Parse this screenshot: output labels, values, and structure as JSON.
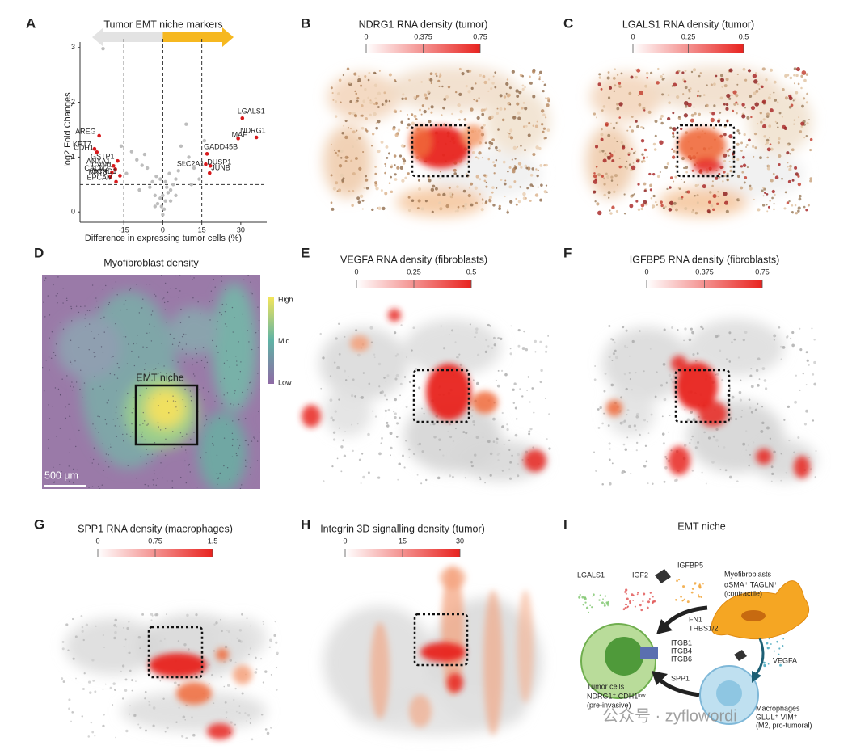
{
  "chart_data": {
    "type": "scatter",
    "title": "Tumor EMT niche markers",
    "xlabel": "Difference in expressing tumor cells (%)",
    "ylabel": "log2 Fold Changes",
    "xlim": [
      -30,
      40
    ],
    "ylim": [
      -0.1,
      3.1
    ],
    "xticks": [
      -15,
      0,
      15,
      30
    ],
    "yticks": [
      0,
      1,
      2,
      3
    ],
    "reference_lines": {
      "x": [
        -15,
        0,
        15
      ],
      "y": [
        0.5
      ]
    },
    "series": [
      {
        "color": "#bdbdbd",
        "x": [
          0,
          1,
          -1,
          2,
          -2,
          3,
          -3,
          0.5,
          -0.5,
          1.5,
          4,
          -4,
          5,
          -5,
          2.5,
          -2.5,
          6,
          -6,
          8,
          -8,
          10,
          -10,
          12,
          -12,
          3,
          -3,
          7,
          -7,
          1,
          -1,
          0,
          9,
          -23,
          14,
          -14,
          11,
          -9,
          16,
          -16,
          5
        ],
        "values": [
          0.3,
          0.2,
          0.25,
          0.35,
          0.15,
          0.4,
          0.3,
          0.05,
          0.1,
          0.45,
          0.5,
          0.55,
          0.6,
          0.45,
          0.7,
          0.65,
          0.75,
          0.8,
          0.9,
          0.85,
          1.0,
          0.95,
          0.8,
          1.1,
          0.2,
          0.1,
          1.2,
          1.05,
          0.55,
          0.6,
          -0.05,
          1.6,
          2.98,
          0.6,
          0.7,
          0.5,
          0.4,
          1.3,
          1.2,
          0.3
        ]
      },
      {
        "color": "#d7191c",
        "point_labels": [
          "LGALS1",
          "NDRG1",
          "MAF",
          "GADD45B",
          "SLC2A1",
          "DUSP1",
          "JUNB",
          "AREG",
          "KRT7",
          "CDH1",
          "ANXA1",
          "GSTP1",
          "ICAM1",
          "CALM2",
          "KRT8",
          "CCND1",
          "EPCAM"
        ],
        "x": [
          30.6,
          36,
          29,
          17,
          16.5,
          18.3,
          18,
          -24.5,
          -26.3,
          -25.4,
          -19,
          -17.4,
          -18.3,
          -19.6,
          -20.2,
          -16.5,
          -18
        ],
        "values": [
          1.71,
          1.36,
          1.34,
          1.06,
          0.87,
          0.84,
          0.71,
          1.39,
          1.15,
          1.09,
          0.84,
          0.93,
          0.78,
          0.72,
          0.64,
          0.66,
          0.55
        ]
      }
    ]
  },
  "panels": {
    "A": {
      "label": "A"
    },
    "B": {
      "label": "B",
      "title": "NDRG1 RNA density (tumor)",
      "colorbar_lim": [
        0,
        0.75
      ],
      "colorbar_ticks": [
        0,
        0.375,
        0.75
      ]
    },
    "C": {
      "label": "C",
      "title": "LGALS1 RNA density (tumor)",
      "colorbar_lim": [
        0,
        0.5
      ],
      "colorbar_ticks": [
        0,
        0.25,
        0.5
      ]
    },
    "D": {
      "label": "D",
      "title": "Myofibroblast density",
      "colorbar_labels": [
        "High",
        "Mid",
        "Low"
      ],
      "annotation": "EMT niche",
      "scalebar": "500 μm"
    },
    "E": {
      "label": "E",
      "title": "VEGFA RNA density (fibroblasts)",
      "colorbar_lim": [
        0,
        0.5
      ],
      "colorbar_ticks": [
        0,
        0.25,
        0.5
      ]
    },
    "F": {
      "label": "F",
      "title": "IGFBP5 RNA density (fibroblasts)",
      "colorbar_lim": [
        0,
        0.75
      ],
      "colorbar_ticks": [
        0,
        0.375,
        0.75
      ]
    },
    "G": {
      "label": "G",
      "title": "SPP1 RNA density (macrophages)",
      "colorbar_lim": [
        0,
        1.5
      ],
      "colorbar_ticks": [
        0,
        0.75,
        1.5
      ]
    },
    "H": {
      "label": "H",
      "title": "Integrin 3D signalling density (tumor)",
      "colorbar_lim": [
        0,
        30
      ],
      "colorbar_ticks": [
        0,
        15,
        30
      ]
    },
    "I": {
      "label": "I",
      "title": "EMT niche",
      "texts": [
        "LGALS1",
        "IGF2",
        "IGFBP5",
        "Myofibroblasts",
        "αSMA⁺ TAGLN⁺",
        "(contractile)",
        "FN1",
        "THBS1/2",
        "ITGB1",
        "ITGB4",
        "ITGB6",
        "SPP1",
        "VEGFA",
        "Tumor cells",
        "NDRG1⁺ CDH1ˡᵒʷ",
        "(pre-invasive)",
        "Macrophages",
        "GLUL⁺ VIM⁺",
        "(M2, pro-tumoral)"
      ]
    }
  },
  "watermark": "公众号 · zyflowordi"
}
